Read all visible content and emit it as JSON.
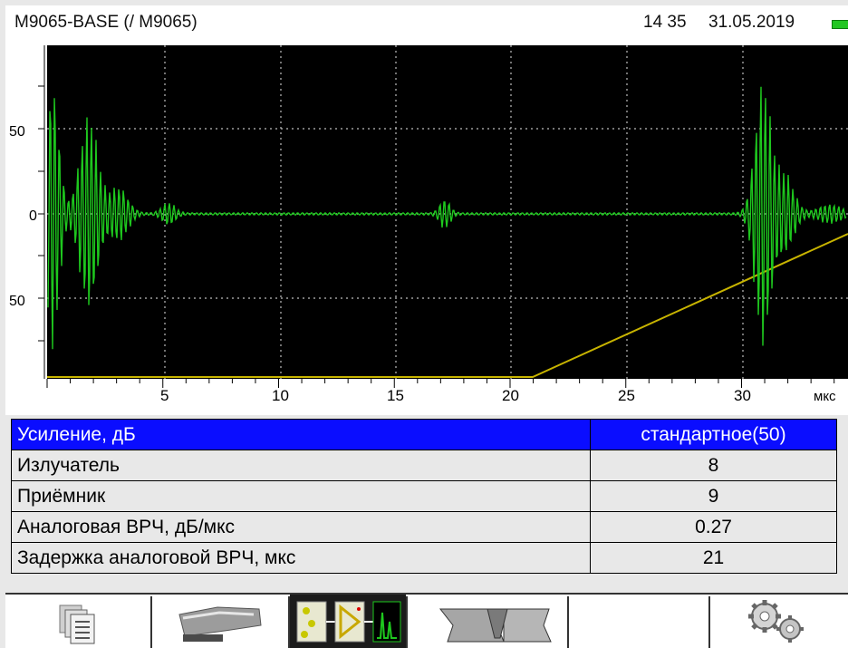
{
  "status_bar": {
    "device_title": "M9065-BASE (/ M9065)",
    "time": "14 35",
    "date": "31.05.2019",
    "battery_icon": "battery-full-icon",
    "battery_color": "#23c623"
  },
  "ascan": {
    "y_ticks": [
      "50",
      "0",
      "50"
    ],
    "x_ticks": [
      "5",
      "10",
      "15",
      "20",
      "25",
      "30"
    ],
    "x_unit": "мкс",
    "signal_color": "#1ec81e",
    "tvg_color": "#c8b400",
    "background_color": "#000000"
  },
  "parameters": [
    {
      "label": "Усиление, дБ",
      "value": "стандартное(50)",
      "selected": true
    },
    {
      "label": "Излучатель",
      "value": "8",
      "selected": false
    },
    {
      "label": "Приёмник",
      "value": "9",
      "selected": false
    },
    {
      "label": "Аналоговая ВРЧ, дБ/мкс",
      "value": "0.27",
      "selected": false
    },
    {
      "label": "Задержка аналоговой ВРЧ, мкс",
      "value": "21",
      "selected": false
    }
  ],
  "toolbar": {
    "buttons": [
      {
        "icon": "documents-icon"
      },
      {
        "icon": "probe-icon"
      },
      {
        "icon": "signal-chain-icon",
        "active": true
      },
      {
        "icon": "weld-joint-icon"
      },
      {
        "icon": "empty-slot"
      },
      {
        "icon": "settings-gears-icon"
      }
    ]
  }
}
